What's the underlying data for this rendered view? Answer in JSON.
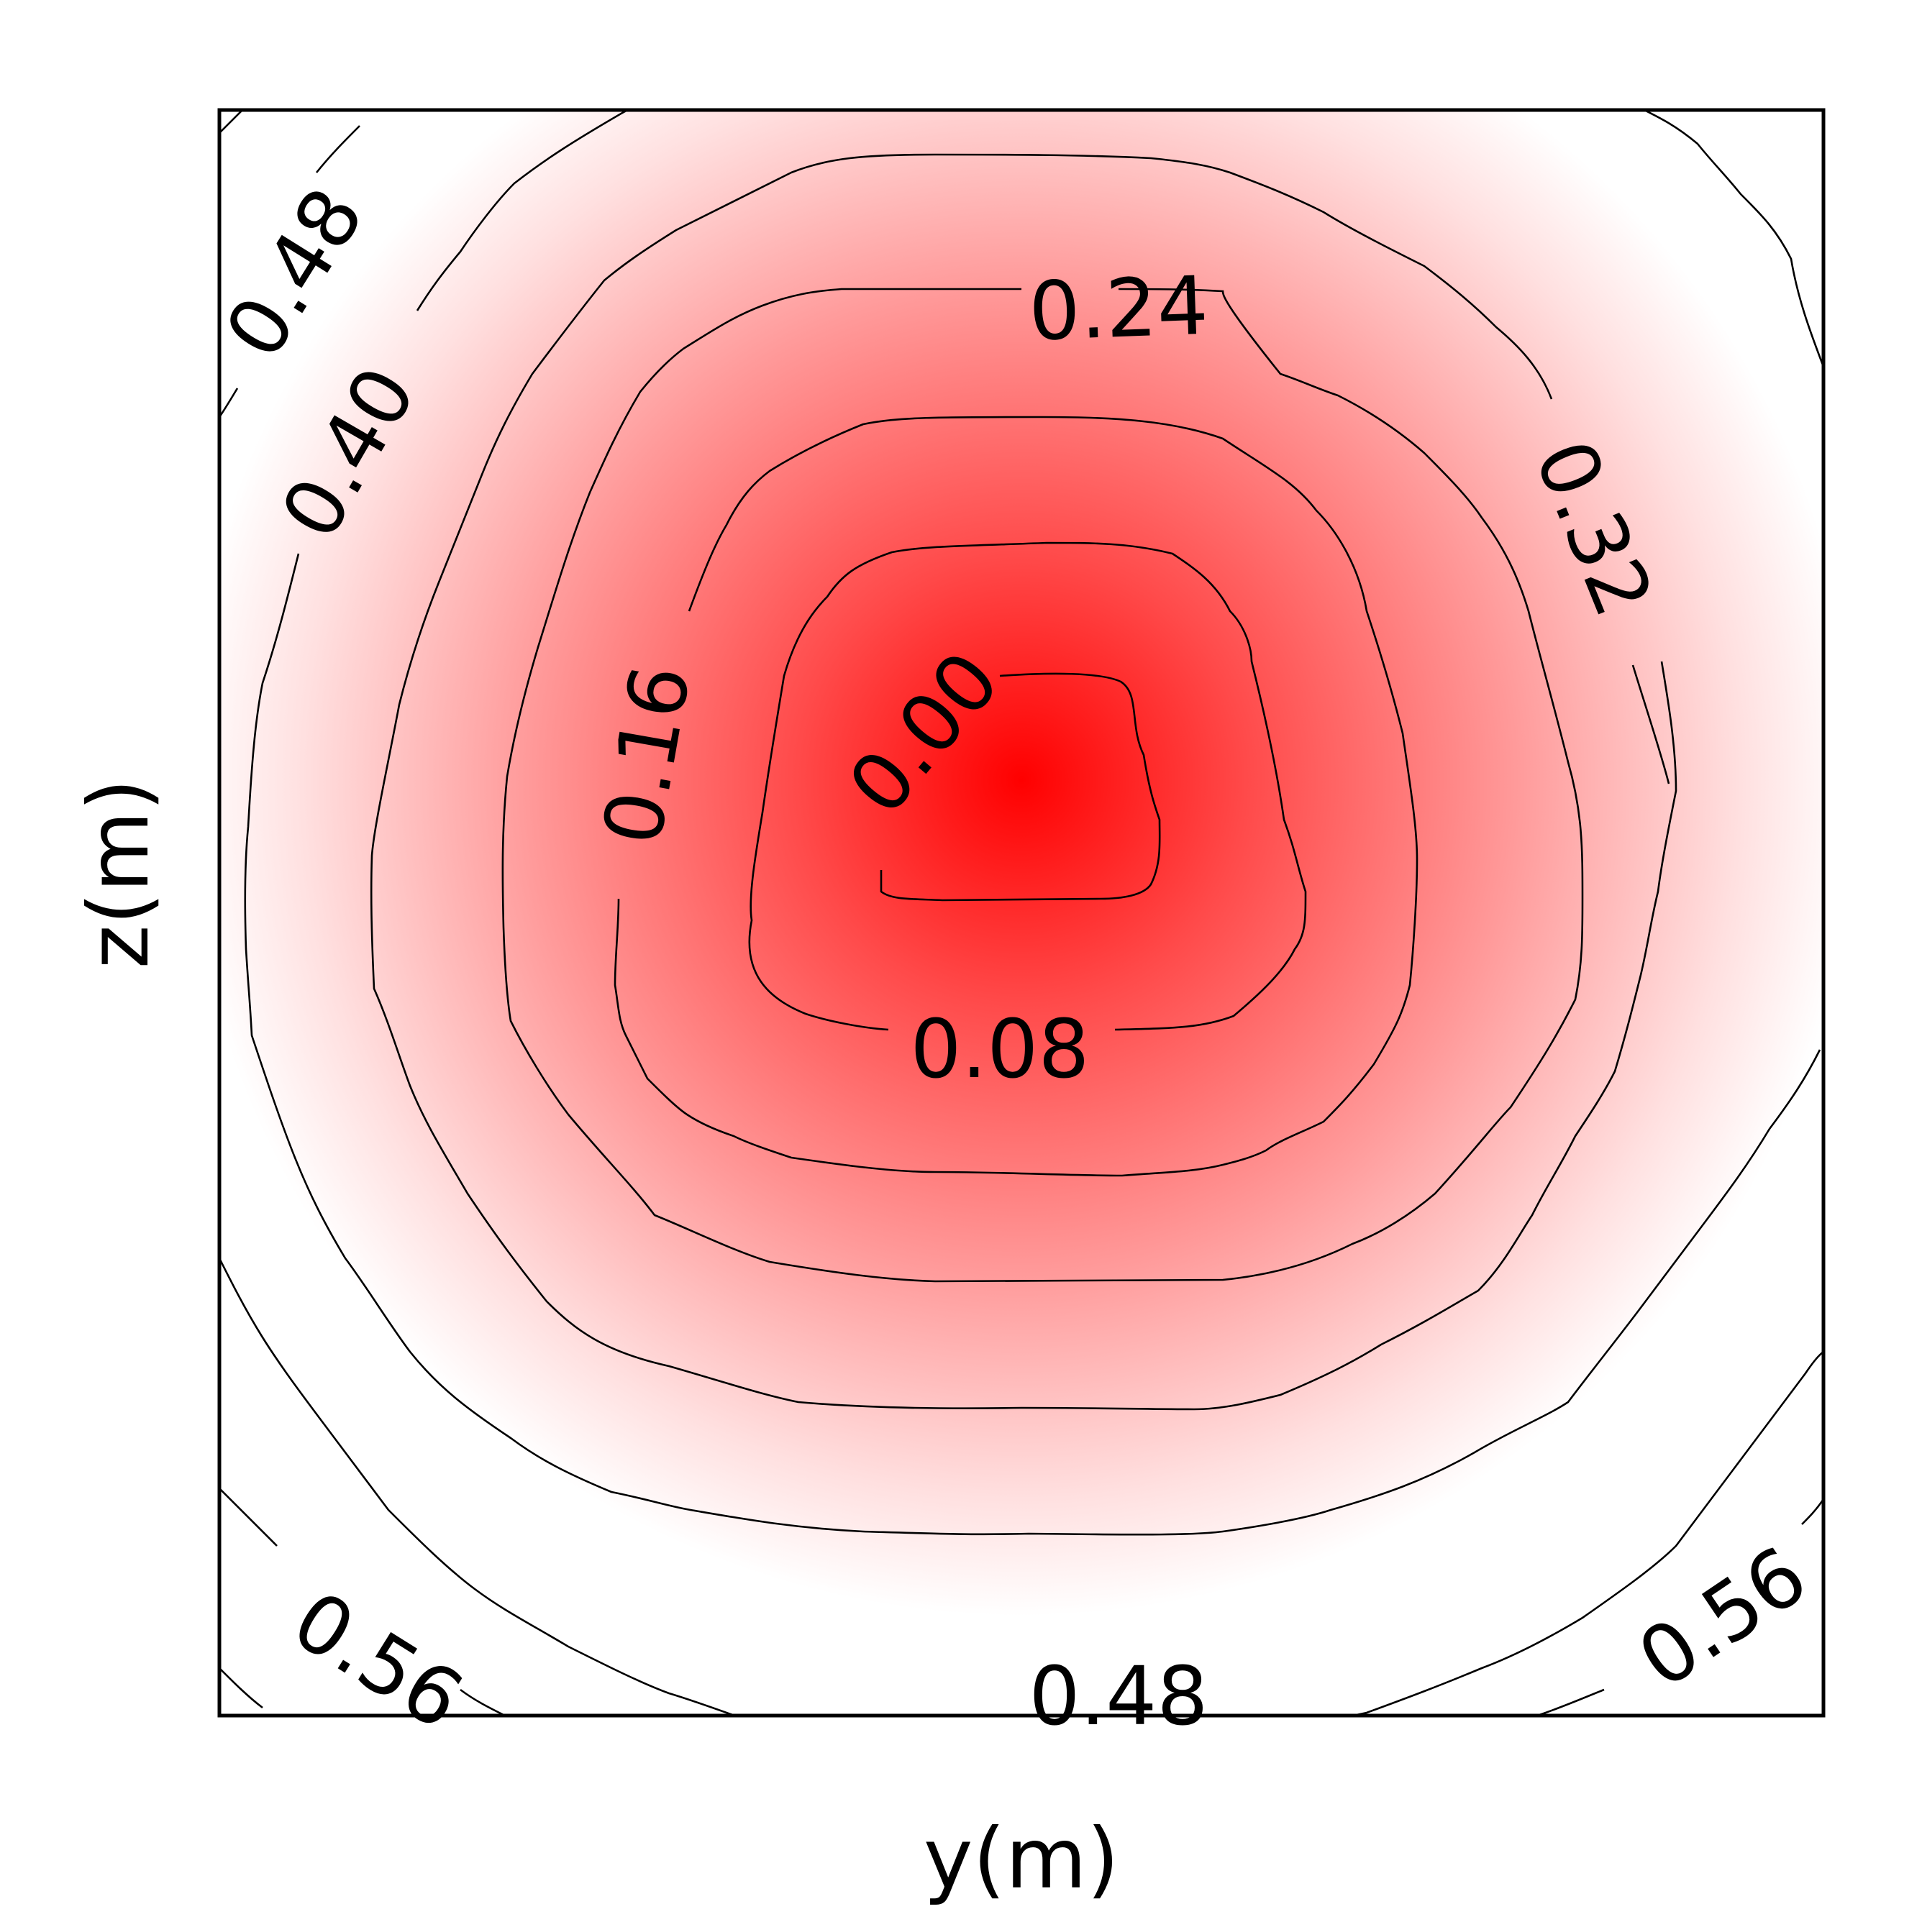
{
  "chart_data": {
    "type": "heatmap",
    "subtype": "filled-contour",
    "title": "",
    "xlabel": "y(m)",
    "ylabel": "z(m)",
    "colormap": {
      "low": "#ff0000",
      "high": "#ffffff"
    },
    "line_color": "#000000",
    "grid": false,
    "legend": "none",
    "value_range": [
      0.0,
      0.56
    ],
    "contour_levels": [
      0.0,
      0.08,
      0.16,
      0.24,
      0.32,
      0.4,
      0.48,
      0.56
    ],
    "contour_labels": [
      {
        "text": "0.00",
        "level": 0.0
      },
      {
        "text": "0.08",
        "level": 0.08
      },
      {
        "text": "0.16",
        "level": 0.16
      },
      {
        "text": "0.24",
        "level": 0.24
      },
      {
        "text": "0.32",
        "level": 0.32
      },
      {
        "text": "0.40",
        "level": 0.4
      },
      {
        "text": "0.48",
        "level": 0.48
      },
      {
        "text": "0.48",
        "level": 0.48
      },
      {
        "text": "0.56",
        "level": 0.56
      },
      {
        "text": "0.56",
        "level": 0.56
      }
    ]
  }
}
